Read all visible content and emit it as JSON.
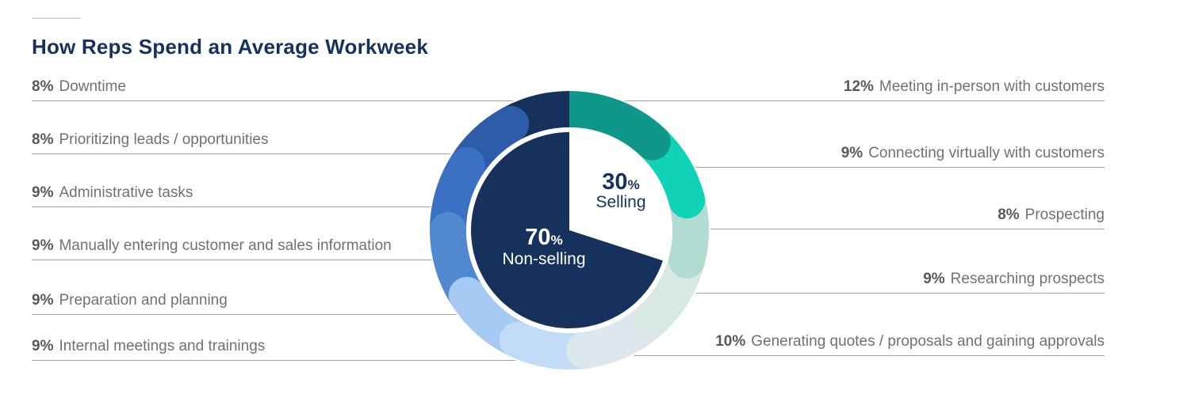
{
  "title": "How Reps Spend an Average Workweek",
  "percent_sign": "%",
  "colors": {
    "navy": "#16325c",
    "label_gray": "#6e7277",
    "pct_gray": "#57595e",
    "line_gray": "#a3a3a3",
    "divider_gray": "#d9d9d9",
    "background": "#ffffff"
  },
  "chart_data": {
    "type": "pie",
    "subtype": "donut-with-inner-pie",
    "title": "How Reps Spend an Average Workweek",
    "inner": {
      "selling": {
        "value": 30,
        "label": "Selling"
      },
      "non_selling": {
        "value": 70,
        "label": "Non-selling"
      }
    },
    "ring_segments": [
      {
        "label": "Meeting in-person with customers",
        "value": 12,
        "color": "#0f978a"
      },
      {
        "label": "Connecting virtually with customers",
        "value": 9,
        "color": "#10d2b6"
      },
      {
        "label": "Prospecting",
        "value": 8,
        "color": "#b2dcd2"
      },
      {
        "label": "Researching prospects",
        "value": 9,
        "color": "#d8e9e4"
      },
      {
        "label": "Generating quotes / proposals and gaining approvals",
        "value": 10,
        "color": "#dde7ee"
      },
      {
        "label": "Internal meetings and trainings",
        "value": 9,
        "color": "#c2dcf8"
      },
      {
        "label": "Preparation and planning",
        "value": 9,
        "color": "#a6caf3"
      },
      {
        "label": "Manually entering customer and sales information",
        "value": 9,
        "color": "#5089cf"
      },
      {
        "label": "Administrative tasks",
        "value": 9,
        "color": "#3c70c4"
      },
      {
        "label": "Prioritizing leads / opportunities",
        "value": 8,
        "color": "#2d5ca8"
      },
      {
        "label": "Downtime",
        "value": 8,
        "color": "#16325c"
      }
    ],
    "left_column": [
      {
        "pct": "8%",
        "label": "Downtime"
      },
      {
        "pct": "8%",
        "label": "Prioritizing leads / opportunities"
      },
      {
        "pct": "9%",
        "label": "Administrative tasks"
      },
      {
        "pct": "9%",
        "label": "Manually entering customer and sales information"
      },
      {
        "pct": "9%",
        "label": "Preparation and planning"
      },
      {
        "pct": "9%",
        "label": "Internal meetings and trainings"
      }
    ],
    "right_column": [
      {
        "pct": "12%",
        "label": "Meeting in-person with customers"
      },
      {
        "pct": "9%",
        "label": "Connecting virtually with customers"
      },
      {
        "pct": "8%",
        "label": "Prospecting"
      },
      {
        "pct": "9%",
        "label": "Researching prospects"
      },
      {
        "pct": "10%",
        "label": "Generating quotes / proposals and gaining approvals"
      }
    ]
  }
}
